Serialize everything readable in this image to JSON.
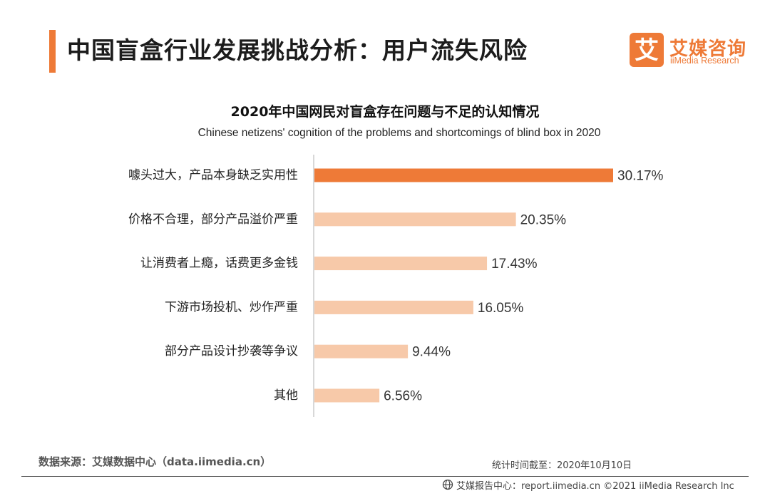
{
  "header": {
    "title": "中国盲盒行业发展挑战分析：用户流失风险",
    "logo_mark": "艾",
    "logo_cn": "艾媒咨询",
    "logo_en": "iiMedia Research"
  },
  "chart_data": {
    "type": "bar",
    "orientation": "horizontal",
    "title": "2020年中国网民对盲盒存在问题与不足的认知情况",
    "subtitle": "Chinese netizens' cognition of the problems and shortcomings of blind box in 2020",
    "categories": [
      "噱头过大，产品本身缺乏实用性",
      "价格不合理，部分产品溢价严重",
      "让消费者上瘾，话费更多金钱",
      "下游市场投机、炒作严重",
      "部分产品设计抄袭等争议",
      "其他"
    ],
    "values": [
      30.17,
      20.35,
      17.43,
      16.05,
      9.44,
      6.56
    ],
    "labels": [
      "30.17%",
      "20.35%",
      "17.43%",
      "16.05%",
      "9.44%",
      "6.56%"
    ],
    "unit": "%",
    "xlim": [
      0,
      30.17
    ],
    "highlight_index": 0,
    "colors": {
      "highlight": "#EE7A37",
      "normal": "#F7C9A9",
      "axis": "#BFBFBF"
    }
  },
  "footer": {
    "source": "数据来源：艾媒数据中心（data.iimedia.cn）",
    "date": "统计时间截至：2020年10月10日",
    "credit": "艾媒报告中心：report.iimedia.cn  ©2021  iiMedia Research  Inc"
  }
}
